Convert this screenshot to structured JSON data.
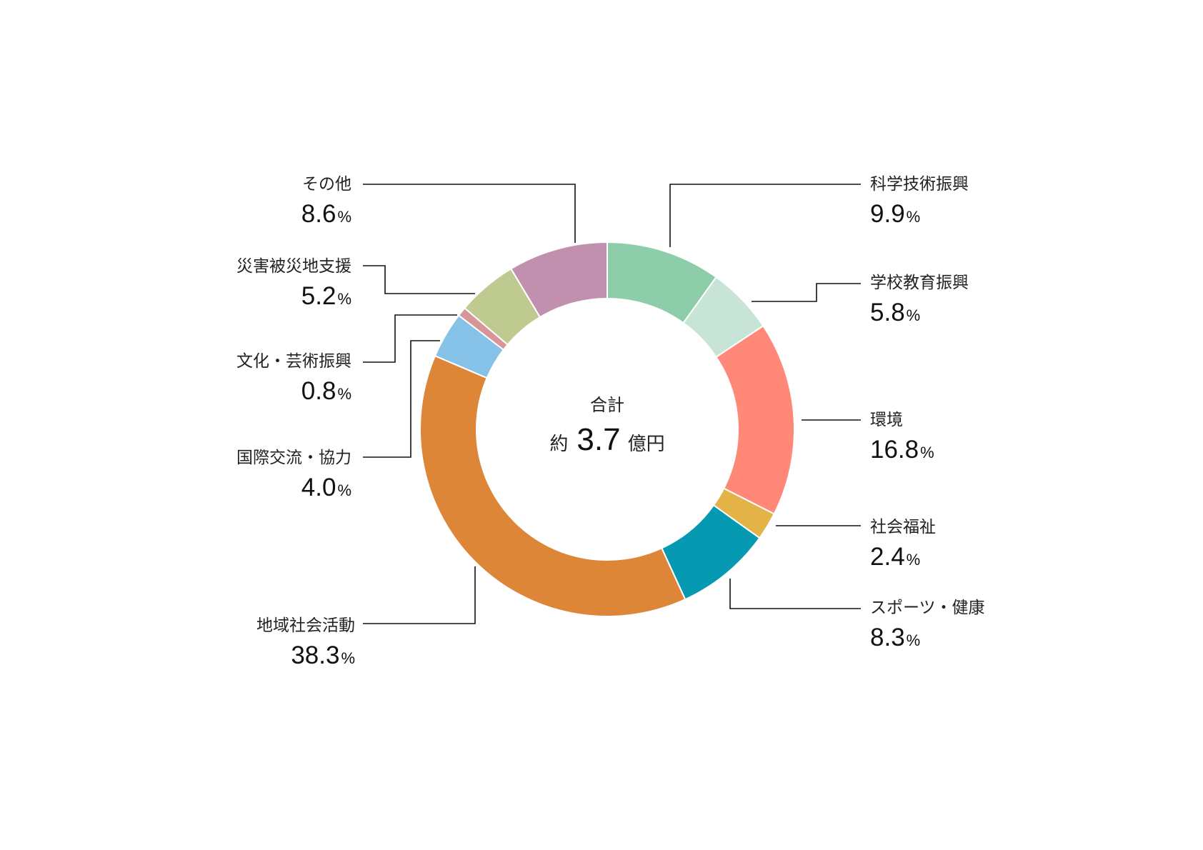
{
  "chart_data": {
    "type": "pie",
    "center": {
      "title": "合計",
      "prefix": "約",
      "value": "3.7",
      "suffix": "億円"
    },
    "unit": "%",
    "slices": [
      {
        "label": "科学技術振興",
        "value": 9.9,
        "display": "9.9",
        "color": "#8ECDAA"
      },
      {
        "label": "学校教育振興",
        "value": 5.8,
        "display": "5.8",
        "color": "#C8E4D6"
      },
      {
        "label": "環境",
        "value": 16.8,
        "display": "16.8",
        "color": "#FF8878"
      },
      {
        "label": "社会福祉",
        "value": 2.4,
        "display": "2.4",
        "color": "#E4B347"
      },
      {
        "label": "スポーツ・健康",
        "value": 8.3,
        "display": "8.3",
        "color": "#069AB2"
      },
      {
        "label": "地域社会活動",
        "value": 38.3,
        "display": "38.3",
        "color": "#DD8637"
      },
      {
        "label": "国際交流・協力",
        "value": 4.0,
        "display": "4.0",
        "color": "#86C1E7"
      },
      {
        "label": "文化・芸術振興",
        "value": 0.8,
        "display": "0.8",
        "color": "#D89597"
      },
      {
        "label": "災害被災地支援",
        "value": 5.2,
        "display": "5.2",
        "color": "#BFCA90"
      },
      {
        "label": "その他",
        "value": 8.6,
        "display": "8.6",
        "color": "#C190AE"
      }
    ]
  }
}
